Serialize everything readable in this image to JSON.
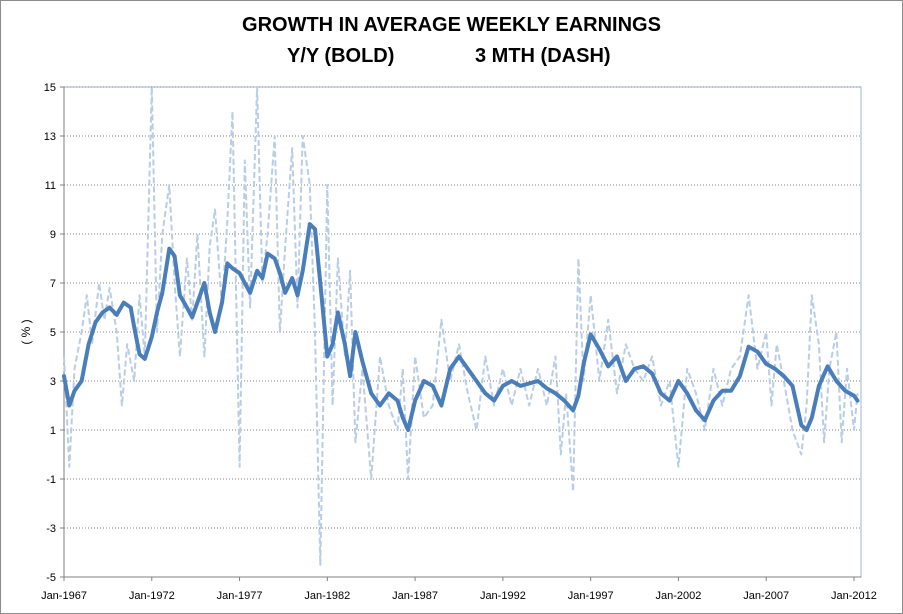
{
  "chart_data": {
    "type": "line",
    "title": "GROWTH IN AVERAGE WEEKLY EARNINGS",
    "subtitle_left": "Y/Y (BOLD)",
    "subtitle_right": "3 MTH (DASH)",
    "ylabel": "( % )",
    "xlabel": "",
    "ylim": [
      -5,
      15
    ],
    "xlim": [
      1967.0,
      2012.4
    ],
    "y_ticks": [
      "15",
      "13",
      "11",
      "9",
      "7",
      "5",
      "3",
      "1",
      "-1",
      "-3",
      "-5"
    ],
    "x_ticks": [
      "Jan-1967",
      "Jan-1972",
      "Jan-1977",
      "Jan-1982",
      "Jan-1987",
      "Jan-1992",
      "Jan-1997",
      "Jan-2002",
      "Jan-2007",
      "Jan-2012"
    ],
    "grid": "horizontal dotted",
    "colors": {
      "yy": "#4a7ebb",
      "three_month": "#b9cde5",
      "grid": "#808080",
      "plot_border": "#9db7d6"
    },
    "series": [
      {
        "name": "Y/Y (BOLD)",
        "style": "bold solid",
        "x": [
          1967.0,
          1967.3,
          1967.6,
          1968.0,
          1968.4,
          1968.8,
          1969.2,
          1969.6,
          1970.0,
          1970.4,
          1970.8,
          1971.0,
          1971.3,
          1971.6,
          1972.0,
          1972.3,
          1972.6,
          1973.0,
          1973.3,
          1973.6,
          1974.0,
          1974.3,
          1974.6,
          1975.0,
          1975.3,
          1975.6,
          1976.0,
          1976.3,
          1976.6,
          1977.0,
          1977.3,
          1977.6,
          1978.0,
          1978.3,
          1978.6,
          1979.0,
          1979.3,
          1979.6,
          1980.0,
          1980.3,
          1980.6,
          1981.0,
          1981.3,
          1981.6,
          1982.0,
          1982.3,
          1982.6,
          1983.0,
          1983.3,
          1983.6,
          1984.0,
          1984.5,
          1985.0,
          1985.5,
          1986.0,
          1986.3,
          1986.6,
          1987.0,
          1987.5,
          1988.0,
          1988.5,
          1989.0,
          1989.5,
          1990.0,
          1990.5,
          1991.0,
          1991.5,
          1992.0,
          1992.5,
          1993.0,
          1993.5,
          1994.0,
          1994.5,
          1995.0,
          1995.5,
          1996.0,
          1996.3,
          1996.6,
          1997.0,
          1997.5,
          1998.0,
          1998.5,
          1999.0,
          1999.5,
          2000.0,
          2000.5,
          2001.0,
          2001.5,
          2002.0,
          2002.5,
          2003.0,
          2003.5,
          2004.0,
          2004.5,
          2005.0,
          2005.5,
          2006.0,
          2006.5,
          2007.0,
          2007.5,
          2008.0,
          2008.5,
          2009.0,
          2009.3,
          2009.6,
          2010.0,
          2010.5,
          2011.0,
          2011.5,
          2012.0,
          2012.2
        ],
        "values": [
          3.2,
          2.0,
          2.6,
          3.0,
          4.5,
          5.4,
          5.8,
          6.0,
          5.7,
          6.2,
          6.0,
          5.2,
          4.1,
          3.9,
          4.8,
          5.8,
          6.6,
          8.4,
          8.1,
          6.5,
          6.0,
          5.6,
          6.2,
          7.0,
          5.8,
          5.0,
          6.2,
          7.8,
          7.6,
          7.4,
          7.0,
          6.6,
          7.5,
          7.2,
          8.2,
          8.0,
          7.4,
          6.6,
          7.2,
          6.5,
          7.5,
          9.4,
          9.2,
          7.0,
          4.0,
          4.5,
          5.8,
          4.5,
          3.2,
          5.0,
          3.8,
          2.5,
          2.0,
          2.5,
          2.2,
          1.5,
          1.0,
          2.2,
          3.0,
          2.8,
          2.0,
          3.5,
          4.0,
          3.5,
          3.0,
          2.5,
          2.2,
          2.8,
          3.0,
          2.8,
          2.9,
          3.0,
          2.7,
          2.5,
          2.2,
          1.8,
          2.4,
          3.7,
          4.9,
          4.3,
          3.6,
          4.0,
          3.0,
          3.5,
          3.6,
          3.3,
          2.5,
          2.2,
          3.0,
          2.5,
          1.8,
          1.4,
          2.2,
          2.6,
          2.6,
          3.2,
          4.4,
          4.2,
          3.7,
          3.5,
          3.2,
          2.8,
          1.2,
          1.0,
          1.5,
          2.8,
          3.6,
          3.0,
          2.6,
          2.4,
          2.2
        ]
      },
      {
        "name": "3 MTH (DASH)",
        "style": "light dashed",
        "x": [
          1967.0,
          1967.3,
          1967.6,
          1968.0,
          1968.3,
          1968.6,
          1969.0,
          1969.3,
          1969.6,
          1970.0,
          1970.3,
          1970.6,
          1971.0,
          1971.3,
          1971.6,
          1972.0,
          1972.3,
          1972.6,
          1973.0,
          1973.3,
          1973.6,
          1974.0,
          1974.3,
          1974.6,
          1975.0,
          1975.3,
          1975.6,
          1976.0,
          1976.3,
          1976.6,
          1977.0,
          1977.3,
          1977.6,
          1978.0,
          1978.3,
          1978.6,
          1979.0,
          1979.3,
          1979.6,
          1980.0,
          1980.3,
          1980.6,
          1981.0,
          1981.3,
          1981.6,
          1982.0,
          1982.3,
          1982.6,
          1983.0,
          1983.3,
          1983.6,
          1984.0,
          1984.5,
          1985.0,
          1985.5,
          1986.0,
          1986.3,
          1986.6,
          1987.0,
          1987.5,
          1988.0,
          1988.5,
          1989.0,
          1989.5,
          1990.0,
          1990.5,
          1991.0,
          1991.5,
          1992.0,
          1992.5,
          1993.0,
          1993.5,
          1994.0,
          1994.5,
          1995.0,
          1995.3,
          1995.6,
          1996.0,
          1996.3,
          1996.6,
          1997.0,
          1997.5,
          1998.0,
          1998.5,
          1999.0,
          1999.5,
          2000.0,
          2000.5,
          2001.0,
          2001.5,
          2002.0,
          2002.5,
          2003.0,
          2003.5,
          2004.0,
          2004.5,
          2005.0,
          2005.5,
          2006.0,
          2006.5,
          2007.0,
          2007.3,
          2007.6,
          2008.0,
          2008.5,
          2009.0,
          2009.3,
          2009.6,
          2010.0,
          2010.3,
          2010.6,
          2011.0,
          2011.3,
          2011.6,
          2012.0,
          2012.2
        ],
        "values": [
          4.0,
          -0.5,
          3.5,
          5.0,
          6.5,
          4.5,
          7.0,
          5.5,
          6.8,
          5.0,
          2.0,
          4.5,
          3.0,
          6.5,
          4.0,
          15.0,
          5.0,
          9.0,
          11.0,
          7.0,
          4.0,
          8.0,
          5.5,
          9.0,
          4.0,
          8.5,
          10.0,
          6.0,
          9.5,
          14.0,
          -0.5,
          12.0,
          6.0,
          15.0,
          7.0,
          9.0,
          13.0,
          5.0,
          8.5,
          12.5,
          6.0,
          13.0,
          11.0,
          5.0,
          -4.5,
          11.0,
          2.0,
          8.0,
          4.0,
          7.5,
          0.5,
          3.5,
          -1.0,
          4.0,
          2.0,
          1.0,
          3.5,
          -1.0,
          4.0,
          1.5,
          2.0,
          5.5,
          3.0,
          4.5,
          2.5,
          1.0,
          4.0,
          2.0,
          3.5,
          2.0,
          3.5,
          2.0,
          3.5,
          2.0,
          4.0,
          0.0,
          2.5,
          -1.5,
          8.0,
          3.0,
          6.5,
          3.0,
          5.5,
          2.5,
          4.5,
          3.5,
          3.0,
          4.0,
          2.0,
          3.0,
          -0.5,
          3.5,
          2.5,
          1.0,
          3.5,
          2.0,
          3.5,
          4.0,
          6.5,
          3.5,
          5.0,
          2.0,
          4.5,
          3.0,
          1.0,
          0.0,
          2.0,
          6.5,
          4.5,
          0.5,
          3.5,
          5.0,
          0.5,
          3.5,
          1.0,
          2.5
        ]
      }
    ]
  }
}
